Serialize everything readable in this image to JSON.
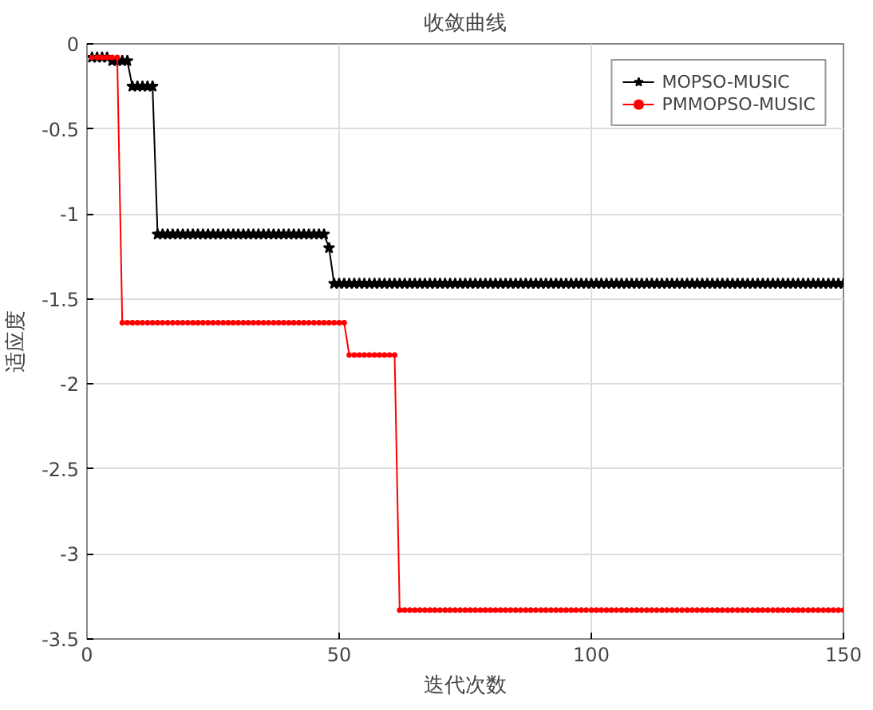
{
  "chart_data": {
    "type": "line",
    "title": "收敛曲线",
    "xlabel": "迭代次数",
    "ylabel": "适应度",
    "x": [
      1,
      2,
      3,
      4,
      5,
      6,
      7,
      8,
      9,
      10,
      11,
      12,
      13,
      14,
      15,
      16,
      17,
      18,
      19,
      20,
      21,
      22,
      23,
      24,
      25,
      26,
      27,
      28,
      29,
      30,
      31,
      32,
      33,
      34,
      35,
      36,
      37,
      38,
      39,
      40,
      41,
      42,
      43,
      44,
      45,
      46,
      47,
      48,
      49,
      50,
      51,
      52,
      53,
      54,
      55,
      56,
      57,
      58,
      59,
      60,
      61,
      62,
      63,
      64,
      65,
      66,
      67,
      68,
      69,
      70,
      71,
      72,
      73,
      74,
      75,
      76,
      77,
      78,
      79,
      80,
      81,
      82,
      83,
      84,
      85,
      86,
      87,
      88,
      89,
      90,
      91,
      92,
      93,
      94,
      95,
      96,
      97,
      98,
      99,
      100,
      101,
      102,
      103,
      104,
      105,
      106,
      107,
      108,
      109,
      110,
      111,
      112,
      113,
      114,
      115,
      116,
      117,
      118,
      119,
      120,
      121,
      122,
      123,
      124,
      125,
      126,
      127,
      128,
      129,
      130,
      131,
      132,
      133,
      134,
      135,
      136,
      137,
      138,
      139,
      140,
      141,
      142,
      143,
      144,
      145,
      146,
      147,
      148,
      149,
      150
    ],
    "series": [
      {
        "name": "MOPSO-MUSIC",
        "color": "#000000",
        "marker": "star",
        "values": [
          -0.08,
          -0.08,
          -0.08,
          -0.08,
          -0.1,
          -0.1,
          -0.1,
          -0.1,
          -0.25,
          -0.25,
          -0.25,
          -0.25,
          -0.25,
          -1.12,
          -1.12,
          -1.12,
          -1.12,
          -1.12,
          -1.12,
          -1.12,
          -1.12,
          -1.12,
          -1.12,
          -1.12,
          -1.12,
          -1.12,
          -1.12,
          -1.12,
          -1.12,
          -1.12,
          -1.12,
          -1.12,
          -1.12,
          -1.12,
          -1.12,
          -1.12,
          -1.12,
          -1.12,
          -1.12,
          -1.12,
          -1.12,
          -1.12,
          -1.12,
          -1.12,
          -1.12,
          -1.12,
          -1.12,
          -1.2,
          -1.41,
          -1.41,
          -1.41,
          -1.41,
          -1.41,
          -1.41,
          -1.41,
          -1.41,
          -1.41,
          -1.41,
          -1.41,
          -1.41,
          -1.41,
          -1.41,
          -1.41,
          -1.41,
          -1.41,
          -1.41,
          -1.41,
          -1.41,
          -1.41,
          -1.41,
          -1.41,
          -1.41,
          -1.41,
          -1.41,
          -1.41,
          -1.41,
          -1.41,
          -1.41,
          -1.41,
          -1.41,
          -1.41,
          -1.41,
          -1.41,
          -1.41,
          -1.41,
          -1.41,
          -1.41,
          -1.41,
          -1.41,
          -1.41,
          -1.41,
          -1.41,
          -1.41,
          -1.41,
          -1.41,
          -1.41,
          -1.41,
          -1.41,
          -1.41,
          -1.41,
          -1.41,
          -1.41,
          -1.41,
          -1.41,
          -1.41,
          -1.41,
          -1.41,
          -1.41,
          -1.41,
          -1.41,
          -1.41,
          -1.41,
          -1.41,
          -1.41,
          -1.41,
          -1.41,
          -1.41,
          -1.41,
          -1.41,
          -1.41,
          -1.41,
          -1.41,
          -1.41,
          -1.41,
          -1.41,
          -1.41,
          -1.41,
          -1.41,
          -1.41,
          -1.41,
          -1.41,
          -1.41,
          -1.41,
          -1.41,
          -1.41,
          -1.41,
          -1.41,
          -1.41,
          -1.41,
          -1.41,
          -1.41,
          -1.41,
          -1.41,
          -1.41,
          -1.41,
          -1.41,
          -1.41,
          -1.41,
          -1.41,
          -1.41
        ]
      },
      {
        "name": "PMMOPSO-MUSIC",
        "color": "#ff0000",
        "marker": "circle",
        "values": [
          -0.08,
          -0.08,
          -0.08,
          -0.08,
          -0.08,
          -0.08,
          -1.64,
          -1.64,
          -1.64,
          -1.64,
          -1.64,
          -1.64,
          -1.64,
          -1.64,
          -1.64,
          -1.64,
          -1.64,
          -1.64,
          -1.64,
          -1.64,
          -1.64,
          -1.64,
          -1.64,
          -1.64,
          -1.64,
          -1.64,
          -1.64,
          -1.64,
          -1.64,
          -1.64,
          -1.64,
          -1.64,
          -1.64,
          -1.64,
          -1.64,
          -1.64,
          -1.64,
          -1.64,
          -1.64,
          -1.64,
          -1.64,
          -1.64,
          -1.64,
          -1.64,
          -1.64,
          -1.64,
          -1.64,
          -1.64,
          -1.64,
          -1.64,
          -1.64,
          -1.83,
          -1.83,
          -1.83,
          -1.83,
          -1.83,
          -1.83,
          -1.83,
          -1.83,
          -1.83,
          -1.83,
          -3.33,
          -3.33,
          -3.33,
          -3.33,
          -3.33,
          -3.33,
          -3.33,
          -3.33,
          -3.33,
          -3.33,
          -3.33,
          -3.33,
          -3.33,
          -3.33,
          -3.33,
          -3.33,
          -3.33,
          -3.33,
          -3.33,
          -3.33,
          -3.33,
          -3.33,
          -3.33,
          -3.33,
          -3.33,
          -3.33,
          -3.33,
          -3.33,
          -3.33,
          -3.33,
          -3.33,
          -3.33,
          -3.33,
          -3.33,
          -3.33,
          -3.33,
          -3.33,
          -3.33,
          -3.33,
          -3.33,
          -3.33,
          -3.33,
          -3.33,
          -3.33,
          -3.33,
          -3.33,
          -3.33,
          -3.33,
          -3.33,
          -3.33,
          -3.33,
          -3.33,
          -3.33,
          -3.33,
          -3.33,
          -3.33,
          -3.33,
          -3.33,
          -3.33,
          -3.33,
          -3.33,
          -3.33,
          -3.33,
          -3.33,
          -3.33,
          -3.33,
          -3.33,
          -3.33,
          -3.33,
          -3.33,
          -3.33,
          -3.33,
          -3.33,
          -3.33,
          -3.33,
          -3.33,
          -3.33,
          -3.33,
          -3.33,
          -3.33,
          -3.33,
          -3.33,
          -3.33,
          -3.33,
          -3.33,
          -3.33,
          -3.33,
          -3.33,
          -3.33
        ]
      }
    ],
    "xlim": [
      0,
      150
    ],
    "ylim": [
      -3.5,
      0
    ],
    "xticks": [
      0,
      50,
      100,
      150
    ],
    "yticks": [
      -3.5,
      -3,
      -2.5,
      -2,
      -1.5,
      -1,
      -0.5,
      0
    ],
    "grid": true,
    "legend": "top right",
    "line_style": "solid"
  }
}
